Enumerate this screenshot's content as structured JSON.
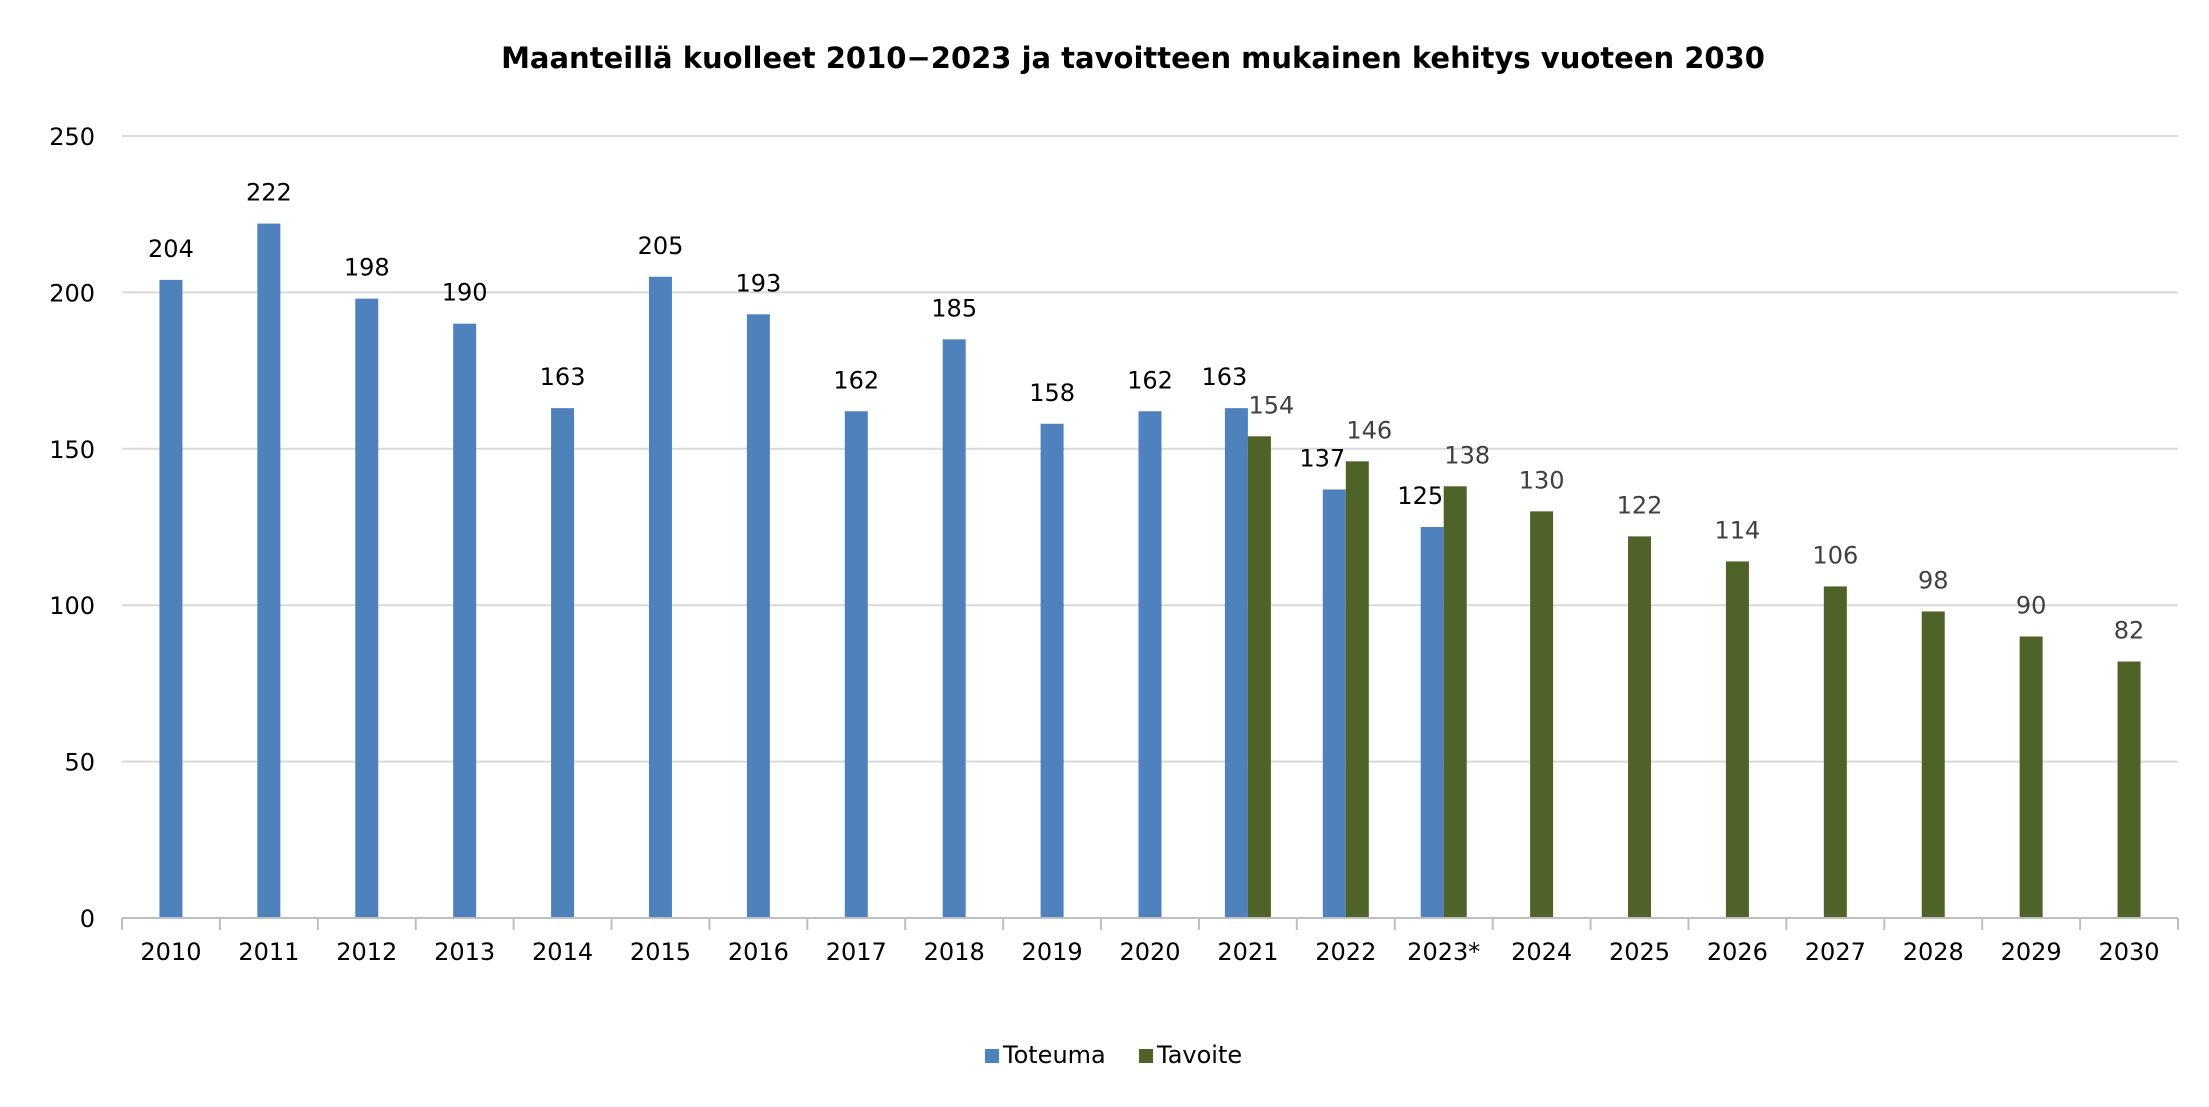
{
  "chart_data": {
    "type": "bar",
    "title": "Maanteillä kuolleet 2010−2023 ja tavoitteen mukainen kehitys vuoteen 2030",
    "xlabel": "",
    "ylabel": "",
    "ylim": [
      0,
      250
    ],
    "yticks": [
      "0",
      "50",
      "100",
      "150",
      "200",
      "250"
    ],
    "grid": true,
    "legend_position": "bottom",
    "categories": [
      "2010",
      "2011",
      "2012",
      "2013",
      "2014",
      "2015",
      "2016",
      "2017",
      "2018",
      "2019",
      "2020",
      "2021",
      "2022",
      "2023*",
      "2024",
      "2025",
      "2026",
      "2027",
      "2028",
      "2029",
      "2030"
    ],
    "series": [
      {
        "name": "Toteuma",
        "color": "#4f81bd",
        "values": [
          204,
          222,
          198,
          190,
          163,
          205,
          193,
          162,
          185,
          158,
          162,
          163,
          137,
          125,
          null,
          null,
          null,
          null,
          null,
          null,
          null
        ]
      },
      {
        "name": "Tavoite",
        "color": "#4f6228",
        "values": [
          null,
          null,
          null,
          null,
          null,
          null,
          null,
          null,
          null,
          null,
          null,
          154,
          146,
          138,
          130,
          122,
          114,
          106,
          98,
          90,
          82
        ]
      }
    ]
  }
}
